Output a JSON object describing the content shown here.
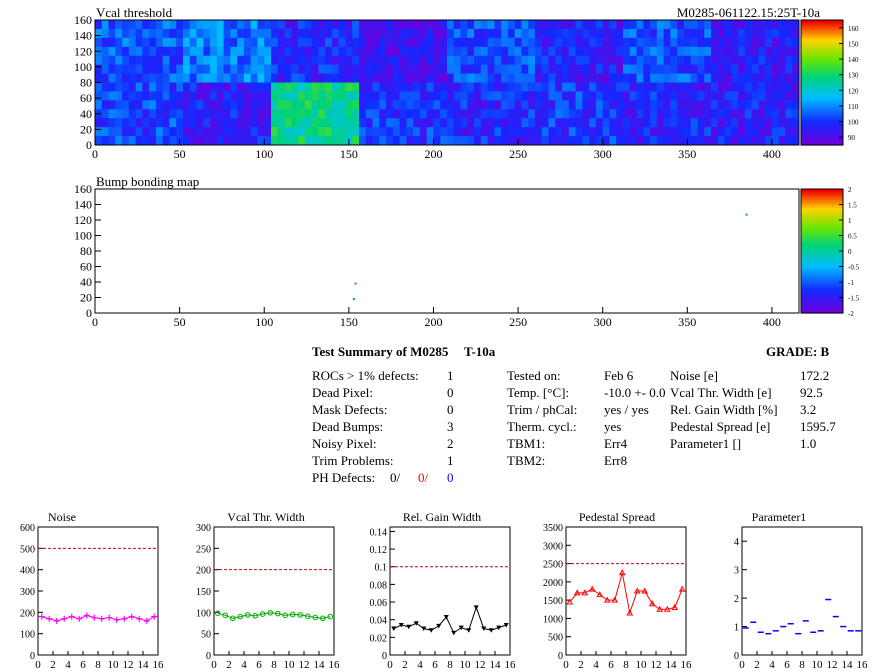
{
  "module_label": "M0285-061122.15:25T-10a",
  "map_titles": [
    "Vcal threshold",
    "Bump bonding map"
  ],
  "summary": {
    "title": "Test Summary of M0285",
    "temp_tag": "T-10a",
    "grade": "GRADE:  B",
    "defects": [
      {
        "label": "ROCs > 1% defects:",
        "value": "1"
      },
      {
        "label": "Dead Pixel:",
        "value": "0"
      },
      {
        "label": "Mask Defects:",
        "value": "0"
      },
      {
        "label": "Dead Bumps:",
        "value": "3"
      },
      {
        "label": "Noisy Pixel:",
        "value": "2"
      },
      {
        "label": "Trim Problems:",
        "value": "1"
      }
    ],
    "ph_defects": {
      "label": "PH Defects:",
      "v1": "0/",
      "v2": "0/",
      "v3": "0"
    },
    "tests": [
      {
        "label": "Tested on:",
        "value": "Feb 6"
      },
      {
        "label": "Temp. [°C]:",
        "value": "-10.0 +- 0.0"
      },
      {
        "label": "Trim / phCal:",
        "value": "yes / yes"
      },
      {
        "label": "Therm. cycl.:",
        "value": "yes"
      },
      {
        "label": "TBM1:",
        "value": "Err4"
      },
      {
        "label": "TBM2:",
        "value": "Err8"
      }
    ],
    "params": [
      {
        "label": "Noise [e]",
        "value": "172.2"
      },
      {
        "label": "Vcal Thr. Width [e]",
        "value": "92.5"
      },
      {
        "label": "Rel. Gain Width [%]",
        "value": "3.2"
      },
      {
        "label": "Pedestal Spread [e]",
        "value": "1595.7"
      },
      {
        "label": "Parameter1 []",
        "value": "1.0"
      }
    ]
  },
  "colors": {
    "magenta": "#ff00ff",
    "green": "#00aa00",
    "black": "#000000",
    "red": "#ff0000",
    "blue": "#0000ff",
    "limit": "#cc0000"
  },
  "chart_data": [
    {
      "type": "heatmap",
      "title": "Vcal threshold",
      "x_ticks": [
        "0",
        "50",
        "100",
        "150",
        "200",
        "250",
        "300",
        "350",
        "400"
      ],
      "y_ticks": [
        "0",
        "20",
        "40",
        "60",
        "80",
        "100",
        "120",
        "140",
        "160"
      ],
      "xlim": [
        0,
        416
      ],
      "ylim": [
        0,
        160
      ],
      "z_ticks": [
        "90",
        "100",
        "110",
        "120",
        "130",
        "140",
        "150",
        "160"
      ],
      "zlim": [
        85,
        165
      ],
      "roc_blocks_top": [
        104,
        108,
        98,
        92,
        103,
        96,
        103,
        95
      ],
      "roc_blocks_bottom": [
        102,
        96,
        127,
        100,
        98,
        100,
        97,
        96
      ]
    },
    {
      "type": "heatmap",
      "title": "Bump bonding map",
      "x_ticks": [
        "0",
        "50",
        "100",
        "150",
        "200",
        "250",
        "300",
        "350",
        "400"
      ],
      "y_ticks": [
        "0",
        "20",
        "40",
        "60",
        "80",
        "100",
        "120",
        "140",
        "160"
      ],
      "xlim": [
        0,
        416
      ],
      "ylim": [
        0,
        160
      ],
      "z_ticks": [
        "-2",
        "-1.5",
        "-1",
        "-0.5",
        "0",
        "0.5",
        "1",
        "1.5",
        "2"
      ],
      "zlim": [
        -2,
        2
      ],
      "points": [
        {
          "x": 385,
          "y": 127
        },
        {
          "x": 154,
          "y": 38
        },
        {
          "x": 153,
          "y": 18
        }
      ]
    },
    {
      "type": "line",
      "title": "Noise",
      "color": "#ff00ff",
      "marker": "cross",
      "x_ticks": [
        "0",
        "2",
        "4",
        "6",
        "8",
        "10",
        "12",
        "14",
        "16"
      ],
      "y_ticks": [
        "0",
        "100",
        "200",
        "300",
        "400",
        "500",
        "600"
      ],
      "ylim": [
        0,
        600
      ],
      "limit": 500,
      "values": [
        180,
        170,
        160,
        170,
        180,
        170,
        185,
        175,
        170,
        175,
        165,
        170,
        180,
        170,
        160,
        180
      ]
    },
    {
      "type": "line",
      "title": "Vcal Thr. Width",
      "color": "#00aa00",
      "marker": "circle",
      "x_ticks": [
        "0",
        "2",
        "4",
        "6",
        "8",
        "10",
        "12",
        "14",
        "16"
      ],
      "y_ticks": [
        "0",
        "50",
        "100",
        "150",
        "200",
        "250",
        "300"
      ],
      "ylim": [
        0,
        300
      ],
      "limit": 200,
      "values": [
        98,
        93,
        86,
        90,
        94,
        92,
        96,
        99,
        97,
        93,
        95,
        94,
        91,
        88,
        86,
        90
      ]
    },
    {
      "type": "line",
      "title": "Rel. Gain Width",
      "color": "#000000",
      "marker": "triangle-down",
      "x_ticks": [
        "0",
        "2",
        "4",
        "6",
        "8",
        "10",
        "12",
        "14",
        "16"
      ],
      "y_ticks": [
        "0",
        "0.02",
        "0.04",
        "0.06",
        "0.08",
        "0.1",
        "0.12",
        "0.14"
      ],
      "ylim": [
        0,
        0.145
      ],
      "limit": 0.1,
      "values": [
        0.03,
        0.034,
        0.032,
        0.036,
        0.03,
        0.028,
        0.033,
        0.043,
        0.025,
        0.031,
        0.028,
        0.054,
        0.03,
        0.028,
        0.031,
        0.034
      ]
    },
    {
      "type": "line",
      "title": "Pedestal Spread",
      "color": "#ff0000",
      "marker": "triangle-up",
      "x_ticks": [
        "0",
        "2",
        "4",
        "6",
        "8",
        "10",
        "12",
        "14",
        "16"
      ],
      "y_ticks": [
        "0",
        "500",
        "1000",
        "1500",
        "2000",
        "2500",
        "3000",
        "3500"
      ],
      "ylim": [
        0,
        3500
      ],
      "limit": 2500,
      "values": [
        1450,
        1700,
        1700,
        1800,
        1650,
        1500,
        1500,
        2250,
        1150,
        1750,
        1750,
        1400,
        1250,
        1250,
        1300,
        1800
      ]
    },
    {
      "type": "scatter",
      "title": "Parameter1",
      "color": "#0000ff",
      "marker": "hline",
      "x_ticks": [
        "0",
        "2",
        "4",
        "6",
        "8",
        "10",
        "12",
        "14",
        "16"
      ],
      "y_ticks": [
        "0",
        "1",
        "2",
        "3",
        "4"
      ],
      "ylim": [
        0,
        4.5
      ],
      "values": [
        0.95,
        1.15,
        0.8,
        0.75,
        0.85,
        1.0,
        1.1,
        0.75,
        1.2,
        0.8,
        0.85,
        1.95,
        1.35,
        1.0,
        0.85,
        0.85
      ]
    }
  ]
}
